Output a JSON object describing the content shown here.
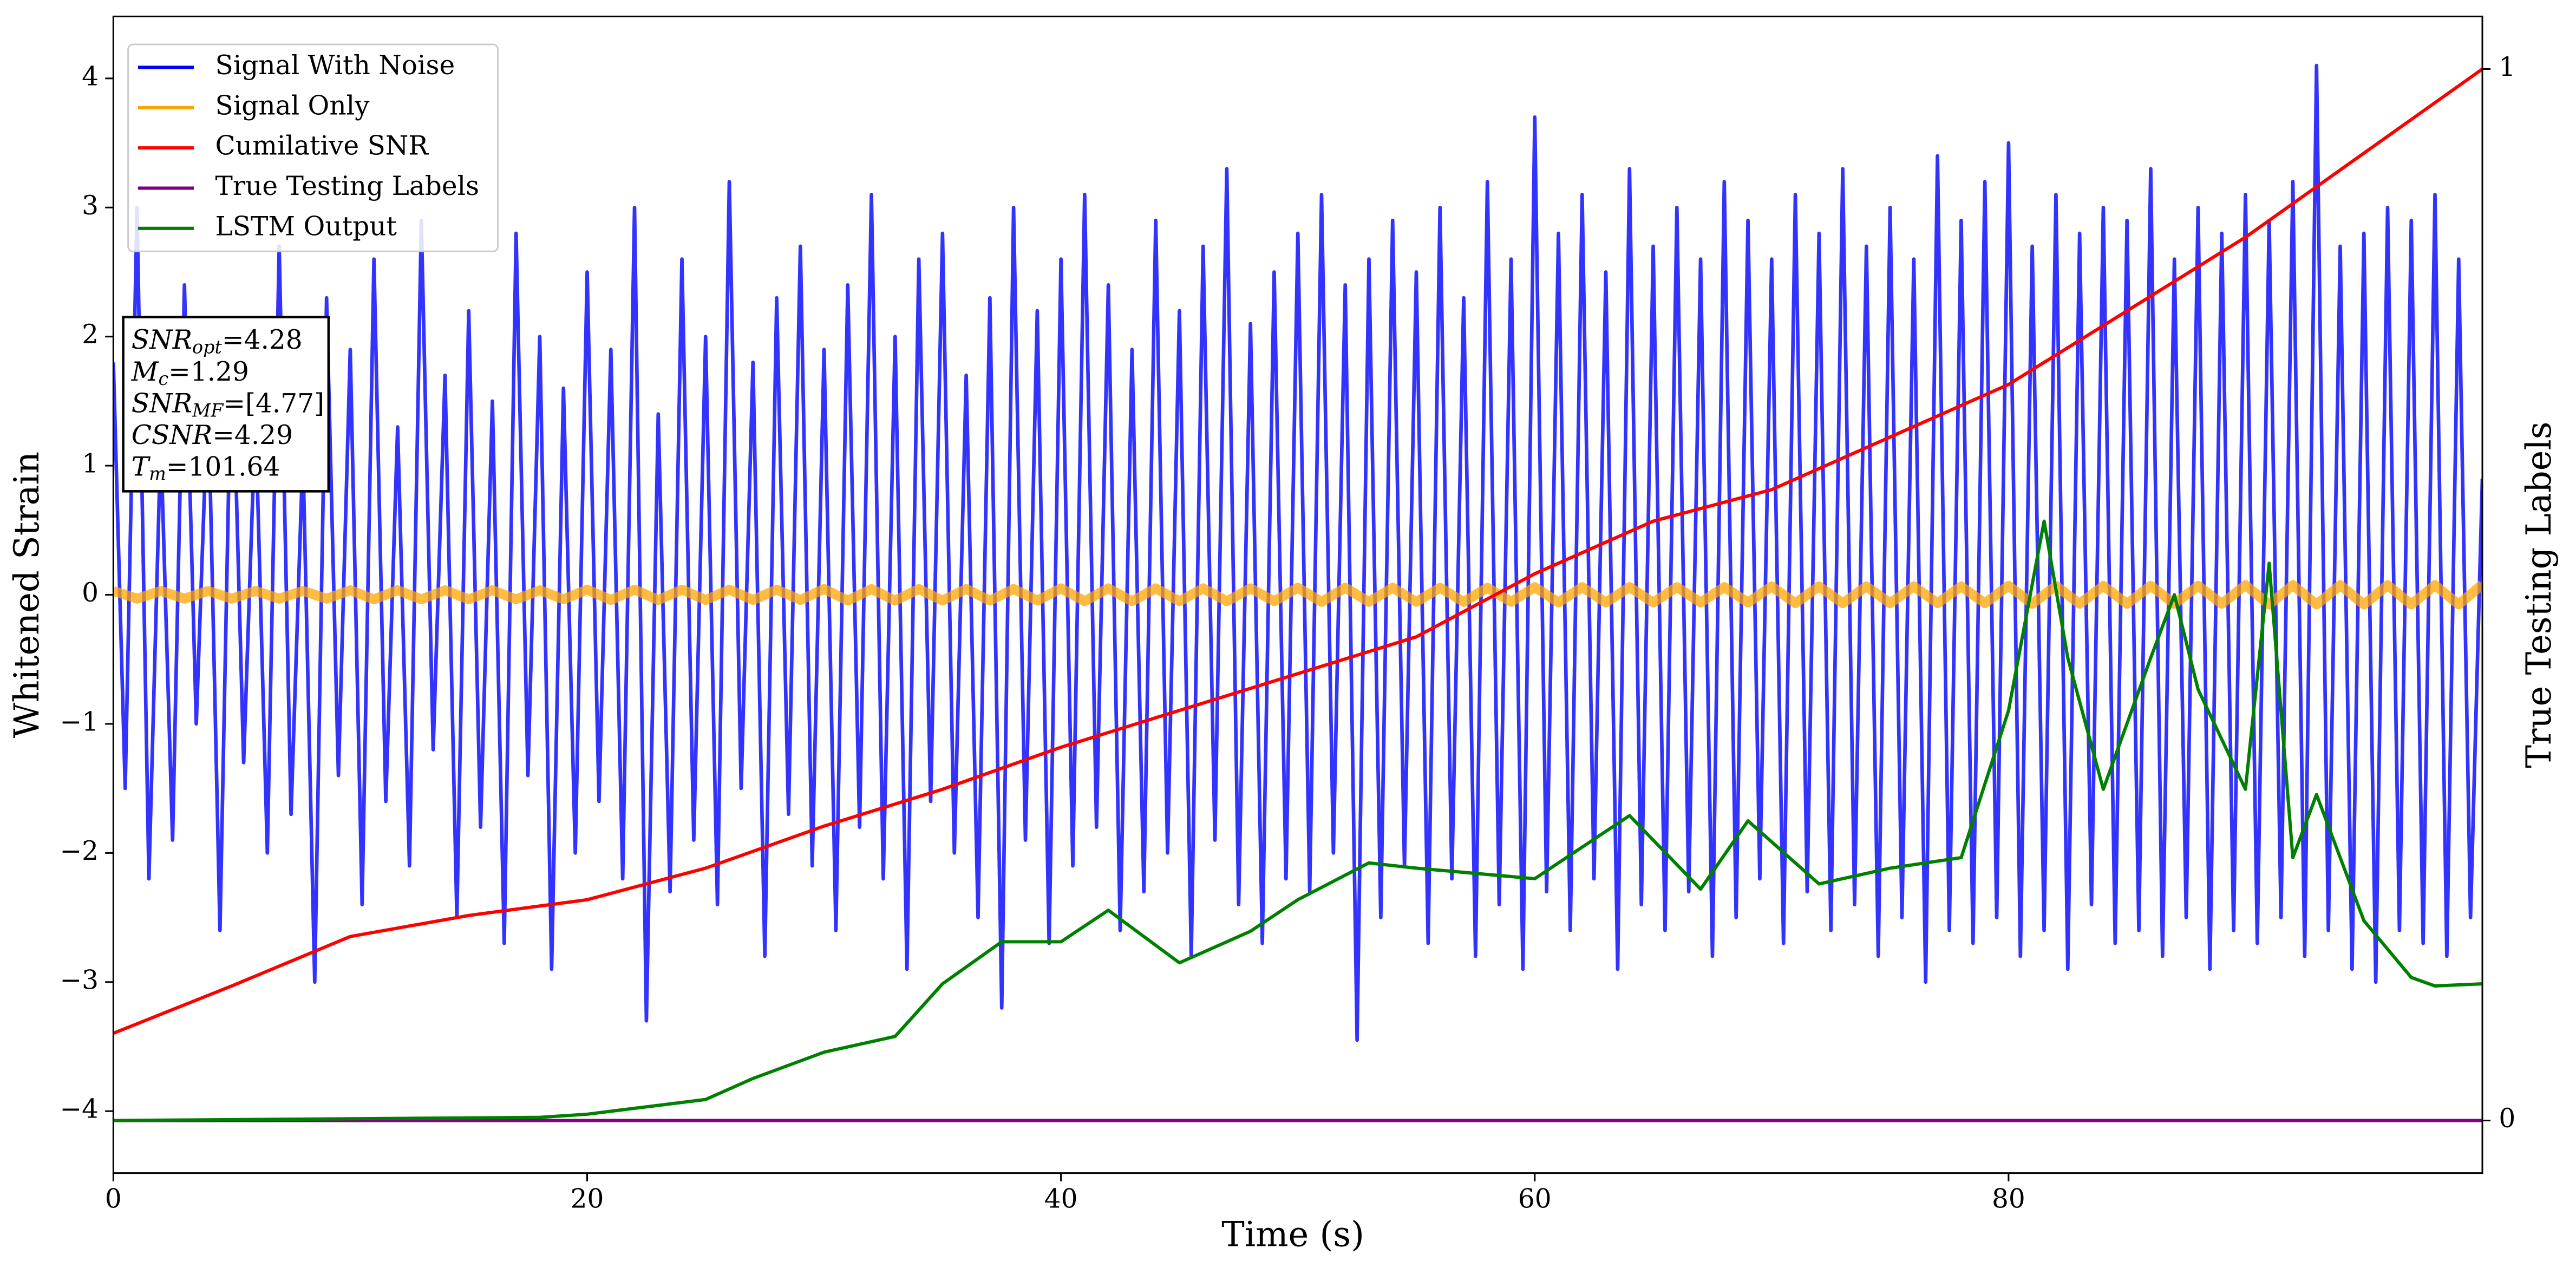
{
  "chart_data": {
    "type": "line",
    "xlabel": "Time (s)",
    "ylabel": "Whitened Strain",
    "y2label": "True Testing Labels",
    "xlim": [
      0,
      100
    ],
    "ylim": [
      -4.48,
      4.48
    ],
    "y2lim": [
      -0.05,
      1.05
    ],
    "xticks": [
      0,
      20,
      40,
      60,
      80
    ],
    "yticks": [
      {
        "value": -4,
        "label": "−4"
      },
      {
        "value": -3,
        "label": "−3"
      },
      {
        "value": -2,
        "label": "−2"
      },
      {
        "value": -1,
        "label": "−1"
      },
      0,
      1,
      2,
      3,
      4
    ],
    "y2ticks": [
      0,
      1
    ],
    "legend": "upper left",
    "series": [
      {
        "name": "Signal With Noise",
        "color": "#0000ff",
        "x": [
          0,
          0.5,
          1,
          1.5,
          2,
          2.5,
          3,
          3.5,
          4,
          4.5,
          5,
          5.5,
          6,
          6.5,
          7,
          7.5,
          8,
          8.5,
          9,
          9.5,
          10,
          10.5,
          11,
          11.5,
          12,
          12.5,
          13,
          13.5,
          14,
          14.5,
          15,
          15.5,
          16,
          16.5,
          17,
          17.5,
          18,
          18.5,
          19,
          19.5,
          20,
          20.5,
          21,
          21.5,
          22,
          22.5,
          23,
          23.5,
          24,
          24.5,
          25,
          25.5,
          26,
          26.5,
          27,
          27.5,
          28,
          28.5,
          29,
          29.5,
          30,
          30.5,
          31,
          31.5,
          32,
          32.5,
          33,
          33.5,
          34,
          34.5,
          35,
          35.5,
          36,
          36.5,
          37,
          37.5,
          38,
          38.5,
          39,
          39.5,
          40,
          40.5,
          41,
          41.5,
          42,
          42.5,
          43,
          43.5,
          44,
          44.5,
          45,
          45.5,
          46,
          46.5,
          47,
          47.5,
          48,
          48.5,
          49,
          49.5,
          50,
          50.5,
          51,
          51.5,
          52,
          52.5,
          53,
          53.5,
          54,
          54.5,
          55,
          55.5,
          56,
          56.5,
          57,
          57.5,
          58,
          58.5,
          59,
          59.5,
          60,
          60.5,
          61,
          61.5,
          62,
          62.5,
          63,
          63.5,
          64,
          64.5,
          65,
          65.5,
          66,
          66.5,
          67,
          67.5,
          68,
          68.5,
          69,
          69.5,
          70,
          70.5,
          71,
          71.5,
          72,
          72.5,
          73,
          73.5,
          74,
          74.5,
          75,
          75.5,
          76,
          76.5,
          77,
          77.5,
          78,
          78.5,
          79,
          79.5,
          80,
          80.5,
          81,
          81.5,
          82,
          82.5,
          83,
          83.5,
          84,
          84.5,
          85,
          85.5,
          86,
          86.5,
          87,
          87.5,
          88,
          88.5,
          89,
          89.5,
          90,
          90.5,
          91,
          91.5,
          92,
          92.5,
          93,
          93.5,
          94,
          94.5,
          95,
          95.5,
          96,
          96.5,
          97,
          97.5,
          98,
          98.5,
          99,
          99.5,
          100
        ],
        "values": [
          1.8,
          -1.5,
          3.0,
          -2.2,
          1.2,
          -1.9,
          2.4,
          -1.0,
          1.6,
          -2.6,
          2.1,
          -1.3,
          1.4,
          -2.0,
          2.7,
          -1.7,
          1.1,
          -3.0,
          2.3,
          -1.4,
          1.9,
          -2.4,
          2.6,
          -1.6,
          1.3,
          -2.1,
          2.9,
          -1.2,
          1.7,
          -2.5,
          2.2,
          -1.8,
          1.5,
          -2.7,
          2.8,
          -1.4,
          2.0,
          -2.9,
          1.6,
          -2.0,
          2.5,
          -1.6,
          1.9,
          -2.2,
          3.0,
          -3.3,
          1.4,
          -2.3,
          2.6,
          -1.9,
          2.0,
          -2.4,
          3.2,
          -1.5,
          1.8,
          -2.8,
          2.3,
          -1.7,
          2.7,
          -2.1,
          1.9,
          -2.6,
          2.4,
          -1.8,
          3.1,
          -2.2,
          2.0,
          -2.9,
          2.6,
          -1.6,
          2.8,
          -2.0,
          1.7,
          -2.5,
          2.3,
          -3.2,
          3.0,
          -1.9,
          2.2,
          -2.7,
          2.6,
          -2.1,
          3.1,
          -1.8,
          2.4,
          -2.6,
          1.9,
          -2.3,
          2.9,
          -2.0,
          2.2,
          -2.8,
          2.7,
          -1.9,
          3.3,
          -2.4,
          2.1,
          -2.7,
          2.5,
          -2.2,
          2.8,
          -2.3,
          3.1,
          -2.0,
          2.4,
          -3.45,
          2.6,
          -2.5,
          2.9,
          -2.1,
          2.5,
          -2.7,
          3.0,
          -2.2,
          2.3,
          -2.8,
          3.2,
          -2.4,
          2.6,
          -2.9,
          3.7,
          -2.3,
          2.8,
          -2.6,
          3.1,
          -2.2,
          2.5,
          -2.9,
          3.3,
          -2.4,
          2.7,
          -2.6,
          3.0,
          -2.3,
          2.6,
          -2.8,
          3.2,
          -2.5,
          2.9,
          -2.2,
          2.6,
          -2.7,
          3.1,
          -2.3,
          2.8,
          -2.6,
          3.3,
          -2.4,
          2.7,
          -2.8,
          3.0,
          -2.5,
          2.6,
          -3.0,
          3.4,
          -2.6,
          2.9,
          -2.7,
          3.2,
          -2.5,
          3.5,
          -2.8,
          2.7,
          -2.6,
          3.1,
          -2.9,
          2.8,
          -2.4,
          3.0,
          -2.7,
          2.9,
          -2.6,
          3.3,
          -2.8,
          2.6,
          -2.5,
          3.0,
          -2.9,
          2.8,
          -2.6,
          3.1,
          -2.7,
          2.9,
          -2.5,
          3.2,
          -2.8,
          4.1,
          -2.6,
          2.7,
          -2.9,
          2.8,
          -3.0,
          3.0,
          -2.6,
          2.9,
          -2.7,
          3.1,
          -2.8,
          2.6,
          -2.5,
          0.9
        ]
      },
      {
        "name": "Signal Only",
        "color": "#ffa500",
        "x": [
          0,
          1,
          2,
          3,
          4,
          5,
          6,
          7,
          8,
          9,
          10,
          11,
          12,
          13,
          14,
          15,
          16,
          17,
          18,
          19,
          20,
          21,
          22,
          23,
          24,
          25,
          26,
          27,
          28,
          29,
          30,
          31,
          32,
          33,
          34,
          35,
          36,
          37,
          38,
          39,
          40,
          41,
          42,
          43,
          44,
          45,
          46,
          47,
          48,
          49,
          50,
          51,
          52,
          53,
          54,
          55,
          56,
          57,
          58,
          59,
          60,
          61,
          62,
          63,
          64,
          65,
          66,
          67,
          68,
          69,
          70,
          71,
          72,
          73,
          74,
          75,
          76,
          77,
          78,
          79,
          80,
          81,
          82,
          83,
          84,
          85,
          86,
          87,
          88,
          89,
          90,
          91,
          92,
          93,
          94,
          95,
          96,
          97,
          98,
          99,
          100
        ],
        "values": [
          0.03,
          -0.03,
          0.03,
          -0.03,
          0.03,
          -0.03,
          0.03,
          -0.03,
          0.03,
          -0.03,
          0.035,
          -0.035,
          0.035,
          -0.035,
          0.035,
          -0.035,
          0.035,
          -0.035,
          0.035,
          -0.035,
          0.04,
          -0.04,
          0.04,
          -0.04,
          0.04,
          -0.04,
          0.04,
          -0.04,
          0.04,
          -0.04,
          0.045,
          -0.045,
          0.045,
          -0.045,
          0.045,
          -0.045,
          0.045,
          -0.045,
          0.045,
          -0.045,
          0.05,
          -0.05,
          0.05,
          -0.05,
          0.05,
          -0.05,
          0.05,
          -0.05,
          0.05,
          -0.05,
          0.055,
          -0.055,
          0.055,
          -0.055,
          0.055,
          -0.055,
          0.055,
          -0.055,
          0.055,
          -0.055,
          0.06,
          -0.06,
          0.06,
          -0.06,
          0.06,
          -0.06,
          0.06,
          -0.06,
          0.06,
          -0.06,
          0.065,
          -0.065,
          0.065,
          -0.065,
          0.065,
          -0.065,
          0.065,
          -0.065,
          0.065,
          -0.065,
          0.07,
          -0.07,
          0.07,
          -0.07,
          0.07,
          -0.07,
          0.07,
          -0.07,
          0.07,
          -0.07,
          0.075,
          -0.075,
          0.075,
          -0.075,
          0.075,
          -0.075,
          0.075,
          -0.075,
          0.075,
          -0.075,
          0.08
        ]
      },
      {
        "name": "Cumilative SNR",
        "color": "#ff0000",
        "axis": "y2",
        "x": [
          0,
          5,
          10,
          15,
          20,
          25,
          30,
          35,
          40,
          45,
          50,
          55,
          60,
          65,
          70,
          75,
          80,
          85,
          90,
          95,
          100
        ],
        "values": [
          0.083,
          0.128,
          0.175,
          0.195,
          0.21,
          0.24,
          0.28,
          0.315,
          0.355,
          0.39,
          0.425,
          0.46,
          0.52,
          0.57,
          0.6,
          0.65,
          0.7,
          0.77,
          0.84,
          0.92,
          1.0
        ]
      },
      {
        "name": "True Testing Labels",
        "color": "#800080",
        "axis": "y2",
        "x": [
          0,
          100
        ],
        "values": [
          0,
          0
        ]
      },
      {
        "name": "LSTM Output",
        "color": "#008000",
        "axis": "y2",
        "x": [
          0,
          18,
          20,
          25,
          27,
          30,
          33,
          35,
          37.5,
          40,
          42,
          45,
          48,
          50,
          53,
          55,
          60,
          64,
          67,
          69,
          72,
          75,
          78,
          80,
          81.5,
          82.5,
          84,
          86,
          87,
          88,
          90,
          91,
          92,
          93,
          95,
          97,
          98,
          100
        ],
        "values": [
          0,
          0.003,
          0.006,
          0.02,
          0.04,
          0.065,
          0.08,
          0.13,
          0.17,
          0.17,
          0.2,
          0.15,
          0.18,
          0.21,
          0.245,
          0.24,
          0.23,
          0.29,
          0.22,
          0.285,
          0.225,
          0.24,
          0.25,
          0.39,
          0.57,
          0.44,
          0.315,
          0.44,
          0.5,
          0.41,
          0.315,
          0.53,
          0.25,
          0.31,
          0.19,
          0.136,
          0.128,
          0.13
        ]
      }
    ],
    "annotation": [
      {
        "label": "SNR",
        "sub": "opt",
        "text": "=4.28"
      },
      {
        "label": "M",
        "sub": "c",
        "text": "=1.29"
      },
      {
        "label": "SNR",
        "sub": "MF",
        "text": "=[4.77]"
      },
      {
        "label": "CSNR",
        "text": "=4.29"
      },
      {
        "label": "T",
        "sub": "m",
        "text": "=101.64"
      }
    ]
  }
}
